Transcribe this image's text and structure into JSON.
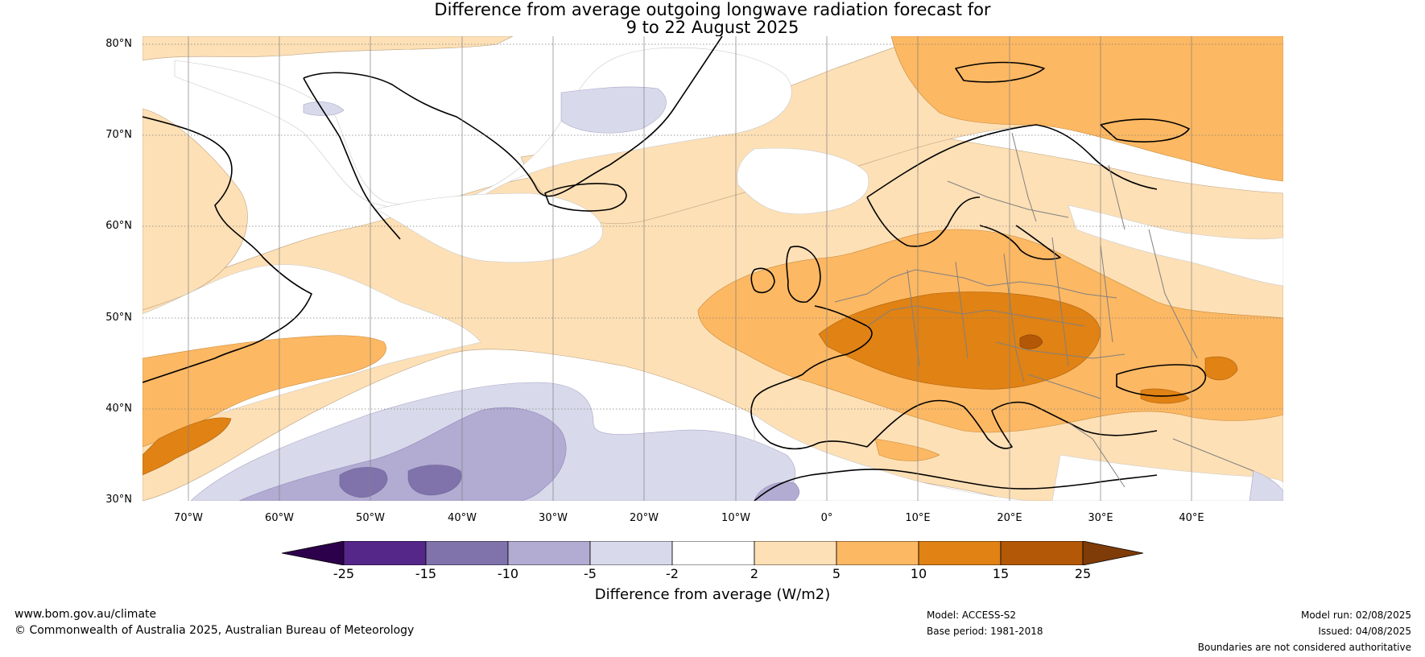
{
  "title": {
    "line1": "Difference from average outgoing longwave radiation forecast for",
    "line2": "9 to 22 August 2025"
  },
  "map": {
    "projection": "equirectangular",
    "region": "North Atlantic and Europe",
    "lon_range": [
      -75,
      50
    ],
    "lat_range": [
      30,
      81
    ],
    "gridlines": "dotted",
    "anomaly_regions": [
      {
        "name": "Greenland ice sheet",
        "category": "near-average"
      },
      {
        "name": "Central North Atlantic 45-60N",
        "category": "near-average"
      },
      {
        "name": "Subtropical North Atlantic 30-40N",
        "category": "-2 to -5"
      },
      {
        "name": "Subtropical North Atlantic core",
        "category": "-5 to -10"
      },
      {
        "name": "Western and central Europe",
        "category": "5 to 10"
      },
      {
        "name": "Central-eastern Europe / Balkans",
        "category": "10 to 15"
      },
      {
        "name": "Hungary local maximum",
        "category": "15 to 25"
      },
      {
        "name": "Barents and Kara seas",
        "category": "5 to 10"
      },
      {
        "name": "Northwest Atlantic near 35N 70W",
        "category": "10 to 15"
      }
    ]
  },
  "lat_labels": [
    "80°N",
    "70°N",
    "60°N",
    "50°N",
    "40°N",
    "30°N"
  ],
  "lon_labels": [
    "70°W",
    "60°W",
    "50°W",
    "40°W",
    "30°W",
    "20°W",
    "10°W",
    "0°",
    "10°E",
    "20°E",
    "30°E",
    "40°E"
  ],
  "colorbar": {
    "title": "Difference from average (W/m2)",
    "ticks": [
      "-25",
      "-15",
      "-10",
      "-5",
      "-2",
      "2",
      "5",
      "10",
      "15",
      "25"
    ],
    "colors": {
      "below_min": "#2d004b",
      "-25 to -15": "#542788",
      "-15 to -10": "#8073ac",
      "-10 to -5": "#b2abd2",
      "-5 to -2": "#d8daeb",
      "-2 to 2": "#ffffff",
      "2 to 5": "#fee0b6",
      "5 to 10": "#fdb863",
      "10 to 15": "#e08214",
      "15 to 25": "#b35806",
      "above_max": "#7f3b08"
    }
  },
  "footer": {
    "website": "www.bom.gov.au/climate",
    "copyright": "© Commonwealth of Australia 2025, Australian Bureau of Meteorology",
    "model": "Model: ACCESS-S2",
    "base_period": "Base period: 1981-2018",
    "model_run": "Model run: 02/08/2025",
    "issued": "Issued: 04/08/2025",
    "disclaimer": "Boundaries are not considered authoritative"
  }
}
